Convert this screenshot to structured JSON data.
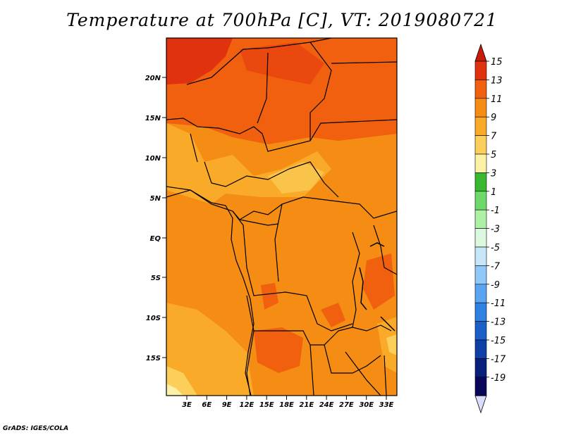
{
  "title": "Temperature at 700hPa [C], VT: 2019080721",
  "credit": "GrADS: IGES/COLA",
  "map": {
    "lat_labels": [
      "20N",
      "15N",
      "10N",
      "5N",
      "EQ",
      "5S",
      "10S",
      "15S"
    ],
    "lon_labels": [
      "3E",
      "6E",
      "9E",
      "12E",
      "15E",
      "18E",
      "21E",
      "24E",
      "27E",
      "30E",
      "33E"
    ]
  },
  "colorbar": {
    "labels": [
      "15",
      "13",
      "11",
      "9",
      "7",
      "5",
      "3",
      "1",
      "-1",
      "-3",
      "-5",
      "-7",
      "-9",
      "-11",
      "-13",
      "-15",
      "-17",
      "-19"
    ],
    "colors": [
      "#e1320f",
      "#f0600f",
      "#f58c14",
      "#f9aa28",
      "#fbcf5a",
      "#fcf1a6",
      "#38b830",
      "#6ed96a",
      "#aef0a6",
      "#dcf8de",
      "#c8e6fa",
      "#91c8fa",
      "#5ba4f0",
      "#2f81e1",
      "#1c5fc8",
      "#0e3fa6",
      "#08207a",
      "#08075a"
    ],
    "top_arrow_color": "#c81c0a",
    "bottom_arrow_color": "#dcdcfc"
  }
}
